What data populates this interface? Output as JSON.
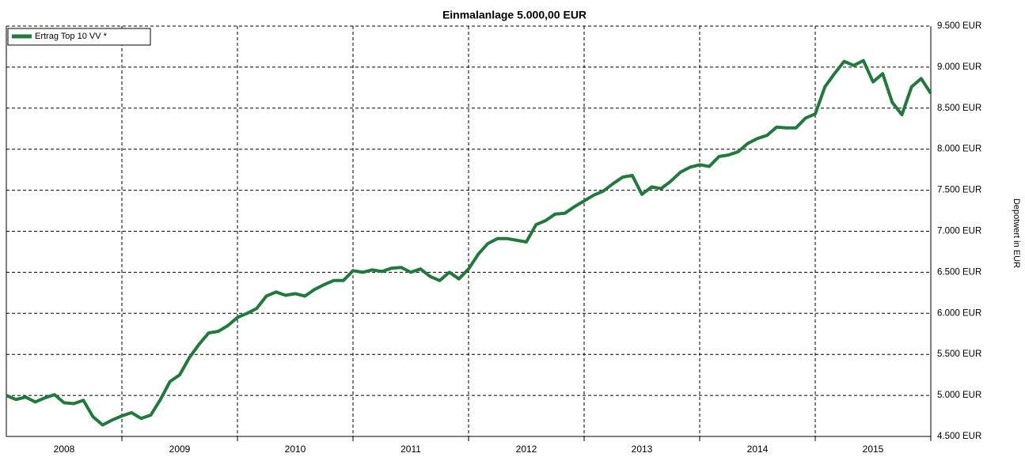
{
  "chart_data": {
    "type": "line",
    "title": "Einmalanlage 5.000,00 EUR",
    "y_axis_label": "Depotwert in EUR",
    "categories": [
      null,
      null,
      null,
      null,
      null,
      null,
      "2008",
      null,
      null,
      null,
      null,
      null,
      null,
      null,
      null,
      null,
      null,
      null,
      "2009",
      null,
      null,
      null,
      null,
      null,
      null,
      null,
      null,
      null,
      null,
      null,
      "2010",
      null,
      null,
      null,
      null,
      null,
      null,
      null,
      null,
      null,
      null,
      null,
      "2011",
      null,
      null,
      null,
      null,
      null,
      null,
      null,
      null,
      null,
      null,
      null,
      "2012",
      null,
      null,
      null,
      null,
      null,
      null,
      null,
      null,
      null,
      null,
      null,
      "2013",
      null,
      null,
      null,
      null,
      null,
      null,
      null,
      null,
      null,
      null,
      null,
      "2014",
      null,
      null,
      null,
      null,
      null,
      null,
      null,
      null,
      null,
      null,
      null,
      "2015",
      null,
      null,
      null,
      null,
      null,
      null
    ],
    "series": [
      {
        "name": "Ertrag Top 10 VV  *",
        "color": "#1f7a3c",
        "values": [
          5000,
          4950,
          4980,
          4920,
          4970,
          5010,
          4910,
          4900,
          4940,
          4740,
          4640,
          4700,
          4750,
          4790,
          4720,
          4760,
          4950,
          5170,
          5250,
          5460,
          5620,
          5760,
          5780,
          5850,
          5950,
          6000,
          6060,
          6210,
          6260,
          6220,
          6240,
          6210,
          6290,
          6350,
          6400,
          6400,
          6520,
          6500,
          6530,
          6510,
          6550,
          6560,
          6500,
          6540,
          6450,
          6400,
          6500,
          6420,
          6540,
          6720,
          6850,
          6910,
          6910,
          6890,
          6870,
          7080,
          7130,
          7210,
          7220,
          7300,
          7370,
          7440,
          7490,
          7580,
          7660,
          7680,
          7450,
          7540,
          7520,
          7610,
          7720,
          7780,
          7810,
          7790,
          7910,
          7930,
          7970,
          8070,
          8130,
          8170,
          8270,
          8260,
          8260,
          8380,
          8430,
          8760,
          8920,
          9070,
          9020,
          9080,
          8820,
          8920,
          8570,
          8420,
          8760,
          8860,
          8680
        ]
      }
    ],
    "ylim": [
      4500,
      9500
    ],
    "yticks": [
      {
        "value": 4500,
        "label": "4.500 EUR"
      },
      {
        "value": 5000,
        "label": "5.000 EUR"
      },
      {
        "value": 5500,
        "label": "5.500 EUR"
      },
      {
        "value": 6000,
        "label": "6.000 EUR"
      },
      {
        "value": 6500,
        "label": "6.500 EUR"
      },
      {
        "value": 7000,
        "label": "7.000 EUR"
      },
      {
        "value": 7500,
        "label": "7.500 EUR"
      },
      {
        "value": 8000,
        "label": "8.000 EUR"
      },
      {
        "value": 8500,
        "label": "8.500 EUR"
      },
      {
        "value": 9000,
        "label": "9.000 EUR"
      },
      {
        "value": 9500,
        "label": "9.500 EUR"
      }
    ],
    "grid": true,
    "legend": "top-left"
  }
}
